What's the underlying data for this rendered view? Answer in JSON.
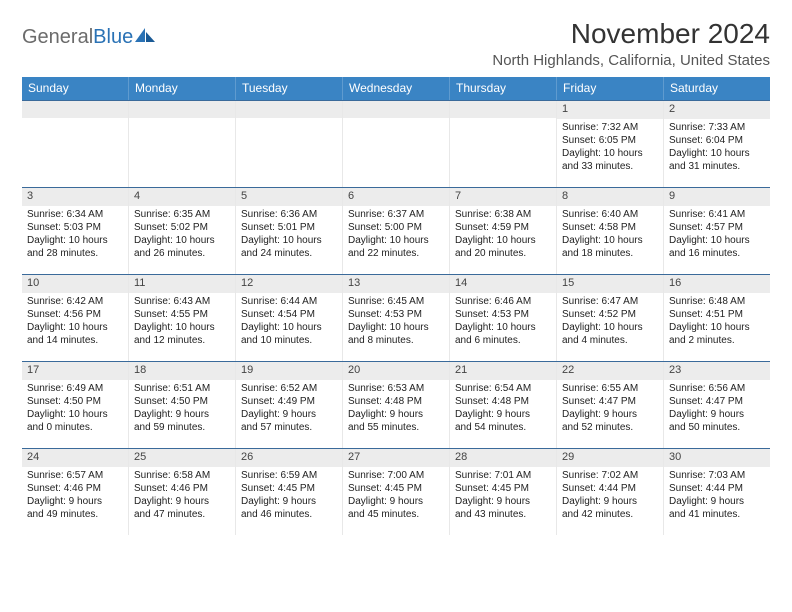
{
  "logo": {
    "gray": "General",
    "blue": "Blue"
  },
  "title": "November 2024",
  "location": "North Highlands, California, United States",
  "header_bg": "#3a84c4",
  "weekdays": [
    "Sunday",
    "Monday",
    "Tuesday",
    "Wednesday",
    "Thursday",
    "Friday",
    "Saturday"
  ],
  "weeks": [
    [
      {
        "n": "",
        "sr": "",
        "ss": "",
        "d1": "",
        "d2": ""
      },
      {
        "n": "",
        "sr": "",
        "ss": "",
        "d1": "",
        "d2": ""
      },
      {
        "n": "",
        "sr": "",
        "ss": "",
        "d1": "",
        "d2": ""
      },
      {
        "n": "",
        "sr": "",
        "ss": "",
        "d1": "",
        "d2": ""
      },
      {
        "n": "",
        "sr": "",
        "ss": "",
        "d1": "",
        "d2": ""
      },
      {
        "n": "1",
        "sr": "Sunrise: 7:32 AM",
        "ss": "Sunset: 6:05 PM",
        "d1": "Daylight: 10 hours",
        "d2": "and 33 minutes."
      },
      {
        "n": "2",
        "sr": "Sunrise: 7:33 AM",
        "ss": "Sunset: 6:04 PM",
        "d1": "Daylight: 10 hours",
        "d2": "and 31 minutes."
      }
    ],
    [
      {
        "n": "3",
        "sr": "Sunrise: 6:34 AM",
        "ss": "Sunset: 5:03 PM",
        "d1": "Daylight: 10 hours",
        "d2": "and 28 minutes."
      },
      {
        "n": "4",
        "sr": "Sunrise: 6:35 AM",
        "ss": "Sunset: 5:02 PM",
        "d1": "Daylight: 10 hours",
        "d2": "and 26 minutes."
      },
      {
        "n": "5",
        "sr": "Sunrise: 6:36 AM",
        "ss": "Sunset: 5:01 PM",
        "d1": "Daylight: 10 hours",
        "d2": "and 24 minutes."
      },
      {
        "n": "6",
        "sr": "Sunrise: 6:37 AM",
        "ss": "Sunset: 5:00 PM",
        "d1": "Daylight: 10 hours",
        "d2": "and 22 minutes."
      },
      {
        "n": "7",
        "sr": "Sunrise: 6:38 AM",
        "ss": "Sunset: 4:59 PM",
        "d1": "Daylight: 10 hours",
        "d2": "and 20 minutes."
      },
      {
        "n": "8",
        "sr": "Sunrise: 6:40 AM",
        "ss": "Sunset: 4:58 PM",
        "d1": "Daylight: 10 hours",
        "d2": "and 18 minutes."
      },
      {
        "n": "9",
        "sr": "Sunrise: 6:41 AM",
        "ss": "Sunset: 4:57 PM",
        "d1": "Daylight: 10 hours",
        "d2": "and 16 minutes."
      }
    ],
    [
      {
        "n": "10",
        "sr": "Sunrise: 6:42 AM",
        "ss": "Sunset: 4:56 PM",
        "d1": "Daylight: 10 hours",
        "d2": "and 14 minutes."
      },
      {
        "n": "11",
        "sr": "Sunrise: 6:43 AM",
        "ss": "Sunset: 4:55 PM",
        "d1": "Daylight: 10 hours",
        "d2": "and 12 minutes."
      },
      {
        "n": "12",
        "sr": "Sunrise: 6:44 AM",
        "ss": "Sunset: 4:54 PM",
        "d1": "Daylight: 10 hours",
        "d2": "and 10 minutes."
      },
      {
        "n": "13",
        "sr": "Sunrise: 6:45 AM",
        "ss": "Sunset: 4:53 PM",
        "d1": "Daylight: 10 hours",
        "d2": "and 8 minutes."
      },
      {
        "n": "14",
        "sr": "Sunrise: 6:46 AM",
        "ss": "Sunset: 4:53 PM",
        "d1": "Daylight: 10 hours",
        "d2": "and 6 minutes."
      },
      {
        "n": "15",
        "sr": "Sunrise: 6:47 AM",
        "ss": "Sunset: 4:52 PM",
        "d1": "Daylight: 10 hours",
        "d2": "and 4 minutes."
      },
      {
        "n": "16",
        "sr": "Sunrise: 6:48 AM",
        "ss": "Sunset: 4:51 PM",
        "d1": "Daylight: 10 hours",
        "d2": "and 2 minutes."
      }
    ],
    [
      {
        "n": "17",
        "sr": "Sunrise: 6:49 AM",
        "ss": "Sunset: 4:50 PM",
        "d1": "Daylight: 10 hours",
        "d2": "and 0 minutes."
      },
      {
        "n": "18",
        "sr": "Sunrise: 6:51 AM",
        "ss": "Sunset: 4:50 PM",
        "d1": "Daylight: 9 hours",
        "d2": "and 59 minutes."
      },
      {
        "n": "19",
        "sr": "Sunrise: 6:52 AM",
        "ss": "Sunset: 4:49 PM",
        "d1": "Daylight: 9 hours",
        "d2": "and 57 minutes."
      },
      {
        "n": "20",
        "sr": "Sunrise: 6:53 AM",
        "ss": "Sunset: 4:48 PM",
        "d1": "Daylight: 9 hours",
        "d2": "and 55 minutes."
      },
      {
        "n": "21",
        "sr": "Sunrise: 6:54 AM",
        "ss": "Sunset: 4:48 PM",
        "d1": "Daylight: 9 hours",
        "d2": "and 54 minutes."
      },
      {
        "n": "22",
        "sr": "Sunrise: 6:55 AM",
        "ss": "Sunset: 4:47 PM",
        "d1": "Daylight: 9 hours",
        "d2": "and 52 minutes."
      },
      {
        "n": "23",
        "sr": "Sunrise: 6:56 AM",
        "ss": "Sunset: 4:47 PM",
        "d1": "Daylight: 9 hours",
        "d2": "and 50 minutes."
      }
    ],
    [
      {
        "n": "24",
        "sr": "Sunrise: 6:57 AM",
        "ss": "Sunset: 4:46 PM",
        "d1": "Daylight: 9 hours",
        "d2": "and 49 minutes."
      },
      {
        "n": "25",
        "sr": "Sunrise: 6:58 AM",
        "ss": "Sunset: 4:46 PM",
        "d1": "Daylight: 9 hours",
        "d2": "and 47 minutes."
      },
      {
        "n": "26",
        "sr": "Sunrise: 6:59 AM",
        "ss": "Sunset: 4:45 PM",
        "d1": "Daylight: 9 hours",
        "d2": "and 46 minutes."
      },
      {
        "n": "27",
        "sr": "Sunrise: 7:00 AM",
        "ss": "Sunset: 4:45 PM",
        "d1": "Daylight: 9 hours",
        "d2": "and 45 minutes."
      },
      {
        "n": "28",
        "sr": "Sunrise: 7:01 AM",
        "ss": "Sunset: 4:45 PM",
        "d1": "Daylight: 9 hours",
        "d2": "and 43 minutes."
      },
      {
        "n": "29",
        "sr": "Sunrise: 7:02 AM",
        "ss": "Sunset: 4:44 PM",
        "d1": "Daylight: 9 hours",
        "d2": "and 42 minutes."
      },
      {
        "n": "30",
        "sr": "Sunrise: 7:03 AM",
        "ss": "Sunset: 4:44 PM",
        "d1": "Daylight: 9 hours",
        "d2": "and 41 minutes."
      }
    ]
  ]
}
